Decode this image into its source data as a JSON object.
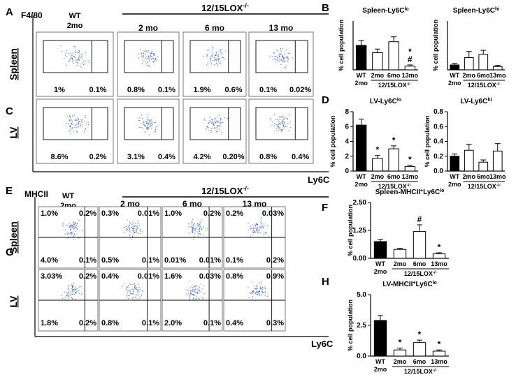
{
  "flow": {
    "sections": [
      {
        "letter_top": "A",
        "letter_bottom": "C",
        "y_axis": "F4/80",
        "x_axis": "Ly6C",
        "wt": "WT",
        "wt_age": "2mo",
        "group": "12/15LOX",
        "group_sup": "-/-",
        "columns": [
          "2 mo",
          "6 mo",
          "13 mo"
        ],
        "rows": [
          {
            "label": "Spleen",
            "gates": [
              [
                "1%",
                "0.1%"
              ],
              [
                "0.8%",
                "0.1%"
              ],
              [
                "1.9%",
                "0.6%"
              ],
              [
                "0.1%",
                "0.02%"
              ]
            ]
          },
          {
            "label": "LV",
            "gates": [
              [
                "8.6%",
                "0.2%"
              ],
              [
                "3.1%",
                "0.4%"
              ],
              [
                "4.2%",
                "0.20%"
              ],
              [
                "0.8%",
                "0.4%"
              ]
            ]
          }
        ]
      },
      {
        "letter_top": "E",
        "letter_bottom": "G",
        "y_axis": "MHCII",
        "x_axis": "Ly6C",
        "wt": "WT",
        "wt_age": "2mo",
        "group": "12/15LOX",
        "group_sup": "-/-",
        "columns": [
          "2 mo",
          "6 mo",
          "13 mo"
        ],
        "rows": [
          {
            "label": "Spleen",
            "gates": [
              [
                "1.0%",
                "0.2%",
                "4.0%",
                "0.1%"
              ],
              [
                "0.3%",
                "0.01%",
                "0.5%",
                "0.1%"
              ],
              [
                "1.0%",
                "0.2%",
                "0.01%",
                "0.01%"
              ],
              [
                "0.2%",
                "0.03%",
                "0.1%",
                "0.2%"
              ]
            ]
          },
          {
            "label": "LV",
            "gates": [
              [
                "3.03%",
                "0.2%",
                "1.8%",
                "0.2%"
              ],
              [
                "0.4%",
                "0.01%",
                "0.8%",
                "0.1%"
              ],
              [
                "1.6%",
                "0.03%",
                "2.0%",
                "0.1%"
              ],
              [
                "0.8%",
                "0.9%",
                "0.4%",
                "0.3%"
              ]
            ]
          }
        ]
      }
    ]
  },
  "chart_data": [
    {
      "type": "bar",
      "panel": "B",
      "title": "Spleen-Ly6C",
      "title_sup": "lo",
      "y_label": "% cell population",
      "categories": [
        "WT",
        "2mo",
        "6mo",
        "13mo"
      ],
      "wt_age": "2mo",
      "group": "12/15LOX",
      "group_sup": "-/-",
      "values": [
        1.0,
        0.7,
        1.15,
        0.15
      ],
      "errors": [
        0.2,
        0.15,
        0.2,
        0.05
      ],
      "colors": [
        "#000000",
        "#ffffff",
        "#ffffff",
        "#ffffff"
      ],
      "ylim": [
        0,
        2
      ],
      "annotations": [
        {
          "index": 3,
          "text": "#"
        },
        {
          "index": 3,
          "text": "*"
        }
      ]
    },
    {
      "type": "bar",
      "title": "Spleen-Ly6C",
      "title_sup": "hi",
      "y_label": "% cell population",
      "categories": [
        "WT",
        "2mo",
        "6mo",
        "13mo"
      ],
      "wt_age": "2mo",
      "group": "12/15LOX",
      "group_sup": "-/-",
      "values": [
        0.12,
        0.3,
        0.38,
        0.08
      ],
      "errors": [
        0.04,
        0.15,
        0.1,
        0.03
      ],
      "colors": [
        "#000000",
        "#ffffff",
        "#ffffff",
        "#ffffff"
      ],
      "ylim": [
        0,
        1.2
      ]
    },
    {
      "type": "bar",
      "panel": "D",
      "title": "LV-Ly6C",
      "title_sup": "lo",
      "y_label": "% cell population",
      "categories": [
        "WT",
        "2mo",
        "6mo",
        "13mo"
      ],
      "wt_age": "2mo",
      "group": "12/15LOX",
      "group_sup": "-/-",
      "values": [
        6.2,
        1.7,
        3.0,
        0.6
      ],
      "errors": [
        0.8,
        0.4,
        0.4,
        0.2
      ],
      "colors": [
        "#000000",
        "#ffffff",
        "#ffffff",
        "#ffffff"
      ],
      "ylim": [
        0,
        8
      ],
      "yticks": [
        0,
        2,
        4,
        6,
        8
      ],
      "annotations": [
        {
          "index": 1,
          "text": "*"
        },
        {
          "index": 2,
          "text": "*"
        },
        {
          "index": 3,
          "text": "*"
        }
      ]
    },
    {
      "type": "bar",
      "title": "LV-Ly6C",
      "title_sup": "hi",
      "y_label": "% cell population",
      "categories": [
        "WT",
        "2mo",
        "6mo",
        "13mo"
      ],
      "wt_age": "2mo",
      "group": "12/15LOX",
      "group_sup": "-/-",
      "values": [
        0.2,
        0.28,
        0.12,
        0.27
      ],
      "errors": [
        0.03,
        0.08,
        0.03,
        0.1
      ],
      "colors": [
        "#000000",
        "#ffffff",
        "#ffffff",
        "#ffffff"
      ],
      "ylim": [
        0,
        0.8
      ],
      "yticks": [
        {
          "value": 0,
          "label": "0.0"
        },
        0.2,
        0.4,
        0.6,
        0.8
      ]
    },
    {
      "type": "bar",
      "panel": "F",
      "title": "Spleen-MHCII",
      "title_sup": "+",
      "title_rest": "Ly6C",
      "title_sup2": "lo",
      "y_label": "% cell population",
      "categories": [
        "WT",
        "2mo",
        "6mo",
        "13mo"
      ],
      "wt_age": "2mo",
      "group": "12/15LOX",
      "group_sup": "-/-",
      "values": [
        0.75,
        0.4,
        1.2,
        0.2
      ],
      "errors": [
        0.1,
        0.05,
        0.3,
        0.05
      ],
      "colors": [
        "#000000",
        "#ffffff",
        "#ffffff",
        "#ffffff"
      ],
      "ylim": [
        0,
        2.5
      ],
      "yticks": [
        {
          "value": 0,
          "label": "0.00"
        },
        1.25,
        {
          "value": 2.5,
          "label": "2.50"
        }
      ],
      "annotations": [
        {
          "index": 2,
          "text": "#"
        },
        {
          "index": 3,
          "text": "*"
        }
      ]
    },
    {
      "type": "bar",
      "panel": "H",
      "title": "LV-MHCII",
      "title_sup": "+",
      "title_rest": "Ly6C",
      "title_sup2": "lo",
      "y_label": "% cell population",
      "categories": [
        "WT",
        "2mo",
        "6mo",
        "13mo"
      ],
      "wt_age": "2mo",
      "group": "12/15LOX",
      "group_sup": "-/-",
      "values": [
        2.9,
        0.5,
        1.1,
        0.4
      ],
      "errors": [
        0.4,
        0.15,
        0.2,
        0.1
      ],
      "colors": [
        "#000000",
        "#ffffff",
        "#ffffff",
        "#ffffff"
      ],
      "ylim": [
        0,
        5
      ],
      "yticks": [
        {
          "value": 0,
          "label": "0.0"
        },
        2.5,
        {
          "value": 5,
          "label": "5.0"
        }
      ],
      "annotations": [
        {
          "index": 1,
          "text": "*"
        },
        {
          "index": 2,
          "text": "*"
        },
        {
          "index": 3,
          "text": "*"
        }
      ]
    }
  ]
}
